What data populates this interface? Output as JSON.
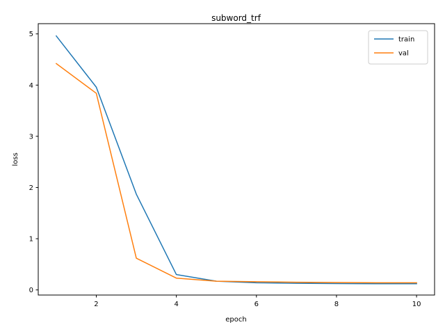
{
  "chart_data": {
    "type": "line",
    "title": "subword_trf",
    "xlabel": "epoch",
    "ylabel": "loss",
    "xlim": [
      0.55,
      10.45
    ],
    "ylim": [
      -0.1,
      5.2
    ],
    "xticks": [
      2,
      4,
      6,
      8,
      10
    ],
    "yticks": [
      0,
      1,
      2,
      3,
      4,
      5
    ],
    "grid": false,
    "legend_position": "top-right",
    "x": [
      1,
      2,
      3,
      4,
      5,
      6,
      7,
      8,
      9,
      10
    ],
    "series": [
      {
        "name": "train",
        "color": "#1f77b4",
        "values": [
          4.96,
          3.96,
          1.87,
          0.3,
          0.17,
          0.14,
          0.13,
          0.125,
          0.12,
          0.12
        ]
      },
      {
        "name": "val",
        "color": "#ff7f0e",
        "values": [
          4.42,
          3.84,
          0.62,
          0.23,
          0.17,
          0.16,
          0.15,
          0.145,
          0.14,
          0.14
        ]
      }
    ]
  }
}
